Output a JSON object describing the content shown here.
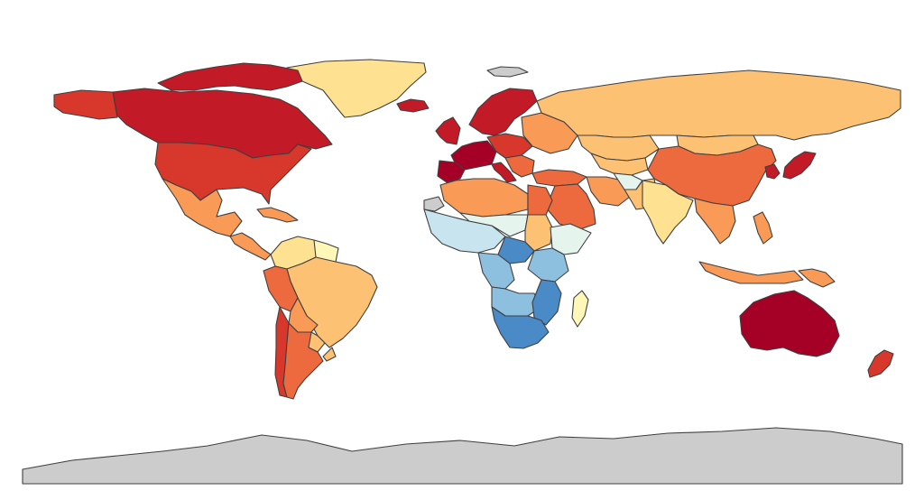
{
  "map": {
    "type": "choropleth",
    "projection": "equirectangular",
    "legend": "none",
    "no_data_color": "#cccccc",
    "color_scale": [
      "#2c6fb1",
      "#4a8ac6",
      "#8dc0de",
      "#c7e4ef",
      "#e6f4ee",
      "#fff7b8",
      "#fee291",
      "#fdc173",
      "#f99a57",
      "#ed6a3e",
      "#d7382b",
      "#c21a26",
      "#a50026"
    ],
    "regions": [
      {
        "id": "greenland",
        "color": "#fee291"
      },
      {
        "id": "canada",
        "color": "#c21a26"
      },
      {
        "id": "canada-arctic-islands",
        "color": "#c21a26"
      },
      {
        "id": "alaska",
        "color": "#d7382b"
      },
      {
        "id": "usa",
        "color": "#d7382b"
      },
      {
        "id": "mexico",
        "color": "#f99a57"
      },
      {
        "id": "central-america",
        "color": "#f99a57"
      },
      {
        "id": "caribbean",
        "color": "#f99a57"
      },
      {
        "id": "venezuela-colombia-north",
        "color": "#fee291"
      },
      {
        "id": "guiana-region",
        "color": "#fff7b8"
      },
      {
        "id": "brazil",
        "color": "#fdc173"
      },
      {
        "id": "peru",
        "color": "#ed6a3e"
      },
      {
        "id": "bolivia",
        "color": "#f99a57"
      },
      {
        "id": "paraguay",
        "color": "#fdc173"
      },
      {
        "id": "chile",
        "color": "#d7382b"
      },
      {
        "id": "argentina",
        "color": "#ed6a3e"
      },
      {
        "id": "uruguay",
        "color": "#fdc173"
      },
      {
        "id": "iceland",
        "color": "#c21a26"
      },
      {
        "id": "ireland-uk",
        "color": "#c21a26"
      },
      {
        "id": "scandinavia",
        "color": "#c21a26"
      },
      {
        "id": "western-europe",
        "color": "#a50026"
      },
      {
        "id": "iberia",
        "color": "#a50026"
      },
      {
        "id": "central-europe",
        "color": "#d7382b"
      },
      {
        "id": "eastern-europe",
        "color": "#f99a57"
      },
      {
        "id": "balkans",
        "color": "#ed6a3e"
      },
      {
        "id": "italy",
        "color": "#c21a26"
      },
      {
        "id": "turkey",
        "color": "#ed6a3e"
      },
      {
        "id": "russia",
        "color": "#fdc173"
      },
      {
        "id": "kazakhstan",
        "color": "#fdc173"
      },
      {
        "id": "central-asia",
        "color": "#fdc173"
      },
      {
        "id": "mongolia",
        "color": "#fdc173"
      },
      {
        "id": "china",
        "color": "#ed6a3e"
      },
      {
        "id": "korea",
        "color": "#c21a26"
      },
      {
        "id": "japan",
        "color": "#c21a26"
      },
      {
        "id": "middle-east",
        "color": "#ed6a3e"
      },
      {
        "id": "iran",
        "color": "#f99a57"
      },
      {
        "id": "afghanistan",
        "color": "#e6f4ee"
      },
      {
        "id": "pakistan",
        "color": "#fdc173"
      },
      {
        "id": "india",
        "color": "#fee291"
      },
      {
        "id": "southeast-asia",
        "color": "#f99a57"
      },
      {
        "id": "indonesia",
        "color": "#f99a57"
      },
      {
        "id": "philippines",
        "color": "#f99a57"
      },
      {
        "id": "papua-new-guinea",
        "color": "#f99a57"
      },
      {
        "id": "australia",
        "color": "#a50026"
      },
      {
        "id": "new-zealand",
        "color": "#d7382b"
      },
      {
        "id": "morocco-algeria-libya",
        "color": "#f99a57"
      },
      {
        "id": "egypt",
        "color": "#ed6a3e"
      },
      {
        "id": "western-sahara",
        "color": "#cccccc"
      },
      {
        "id": "west-africa",
        "color": "#c7e4ef"
      },
      {
        "id": "sahel",
        "color": "#e6f4ee"
      },
      {
        "id": "sudan",
        "color": "#fdc173"
      },
      {
        "id": "horn-of-africa",
        "color": "#e6f4ee"
      },
      {
        "id": "central-africa",
        "color": "#4a8ac6"
      },
      {
        "id": "congo-basin",
        "color": "#8dc0de"
      },
      {
        "id": "east-africa",
        "color": "#8dc0de"
      },
      {
        "id": "angola-zambia",
        "color": "#8dc0de"
      },
      {
        "id": "mozambique-tanzania",
        "color": "#4a8ac6"
      },
      {
        "id": "southern-africa",
        "color": "#4a8ac6"
      },
      {
        "id": "madagascar",
        "color": "#fff7b8"
      },
      {
        "id": "antarctica",
        "color": "#cccccc"
      },
      {
        "id": "svalbard",
        "color": "#cccccc"
      }
    ]
  }
}
